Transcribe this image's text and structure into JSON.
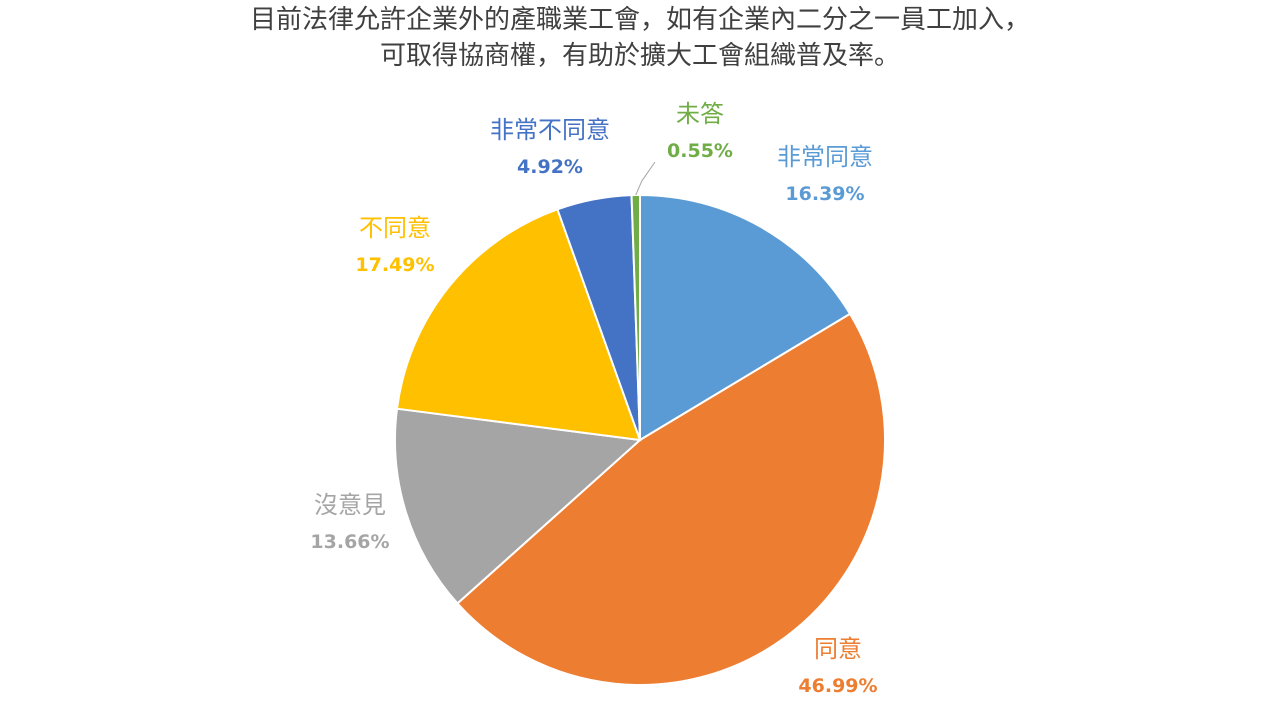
{
  "chart_data": {
    "type": "pie",
    "title_lines": [
      "目前法律允許企業外的產職業工會，如有企業內二分之一員工加入，",
      "可取得協商權，有助於擴大工會組織普及率。"
    ],
    "slices": [
      {
        "name": "非常同意",
        "value": 16.39,
        "value_label": "16.39%",
        "color": "#5B9BD5"
      },
      {
        "name": "同意",
        "value": 46.99,
        "value_label": "46.99%",
        "color": "#ED7D31"
      },
      {
        "name": "沒意見",
        "value": 13.66,
        "value_label": "13.66%",
        "color": "#A5A5A5"
      },
      {
        "name": "不同意",
        "value": 17.49,
        "value_label": "17.49%",
        "color": "#FFC000"
      },
      {
        "name": "非常不同意",
        "value": 4.92,
        "value_label": "4.92%",
        "color": "#4472C4"
      },
      {
        "name": "未答",
        "value": 0.55,
        "value_label": "0.55%",
        "color": "#70AD47"
      }
    ],
    "start_position": "top",
    "direction": "clockwise",
    "legend": "none"
  }
}
